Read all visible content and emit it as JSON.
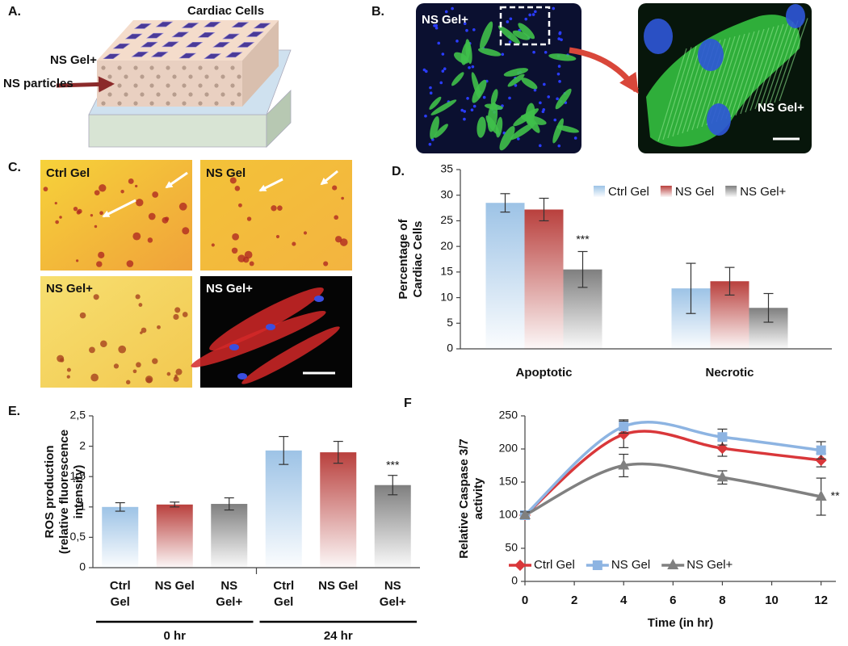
{
  "panel_a": {
    "label": "A.",
    "top_label": "Cardiac Cells",
    "gel_label": "NS Gel+",
    "particles_label": "NS particles"
  },
  "panel_b": {
    "label": "B.",
    "left_label": "NS Gel+",
    "right_label": "NS Gel+"
  },
  "panel_c": {
    "label": "C.",
    "image_labels": [
      "Ctrl Gel",
      "NS Gel",
      "NS Gel+",
      "NS Gel+"
    ]
  },
  "chart_data": [
    {
      "type": "bar",
      "label": "D.",
      "ylabel": [
        "Percentage  of",
        "Cardiac Cells"
      ],
      "categories": [
        "Apoptotic",
        "Necrotic"
      ],
      "series": [
        {
          "name": "Ctrl Gel",
          "color": "#9dc3e6",
          "values": [
            28.5,
            11.8
          ],
          "errors": [
            1.8,
            4.9
          ]
        },
        {
          "name": "NS Gel",
          "color": "#b9403d",
          "values": [
            27.2,
            13.2
          ],
          "errors": [
            2.2,
            2.7
          ]
        },
        {
          "name": "NS Gel+",
          "color": "#7f7f7f",
          "values": [
            15.5,
            8.0
          ],
          "errors": [
            3.5,
            2.8
          ],
          "significance": [
            "***",
            null
          ]
        }
      ],
      "ylim": [
        0,
        35
      ],
      "yticks": [
        0,
        5,
        10,
        15,
        20,
        25,
        30,
        35
      ],
      "legend": "top-right"
    },
    {
      "type": "bar",
      "label": "E.",
      "ylabel": [
        "ROS production",
        "(relative fluorescence",
        "intensity)"
      ],
      "categories": [
        [
          "Ctrl",
          "Gel"
        ],
        [
          "NS Gel"
        ],
        [
          "NS",
          "Gel+"
        ],
        [
          "Ctrl",
          "Gel"
        ],
        [
          "NS Gel"
        ],
        [
          "NS",
          "Gel+"
        ]
      ],
      "groups": [
        "0 hr",
        "24 hr"
      ],
      "values": [
        1.0,
        1.04,
        1.05,
        1.93,
        1.9,
        1.36
      ],
      "errors": [
        0.07,
        0.04,
        0.1,
        0.23,
        0.18,
        0.16
      ],
      "colors": [
        "#9dc3e6",
        "#b9403d",
        "#7f7f7f",
        "#9dc3e6",
        "#b9403d",
        "#7f7f7f"
      ],
      "significance": [
        null,
        null,
        null,
        null,
        null,
        "***"
      ],
      "ylim": [
        0,
        2.5
      ],
      "yticks": [
        0,
        {
          "value": 0.5,
          "label": "0,5"
        },
        1,
        {
          "value": 1.5,
          "label": "1,5"
        },
        2,
        {
          "value": 2.5,
          "label": "2,5"
        }
      ]
    },
    {
      "type": "line",
      "label": "F",
      "ylabel": [
        "Relative Caspase 3/7",
        "activity"
      ],
      "xlabel": "Time (in hr)",
      "x": [
        0,
        4,
        8,
        12
      ],
      "series": [
        {
          "name": "Ctrl Gel",
          "color": "#d9373a",
          "marker": "diamond",
          "values": [
            100,
            222,
            201,
            183
          ],
          "errors": [
            5,
            20,
            12,
            10
          ]
        },
        {
          "name": "NS Gel",
          "color": "#8db4e2",
          "marker": "square",
          "values": [
            100,
            234,
            218,
            198
          ],
          "errors": [
            5,
            10,
            12,
            13
          ]
        },
        {
          "name": "NS Gel+",
          "color": "#808080",
          "marker": "triangle",
          "values": [
            100,
            175,
            157,
            128
          ],
          "errors": [
            5,
            17,
            10,
            28
          ],
          "significance": [
            null,
            null,
            null,
            "**"
          ]
        }
      ],
      "xlim": [
        0,
        12.6
      ],
      "xticks": [
        0,
        2,
        4,
        6,
        8,
        10,
        12
      ],
      "ylim": [
        0,
        250
      ],
      "yticks": [
        0,
        50,
        100,
        150,
        200,
        250
      ],
      "legend": "bottom"
    }
  ]
}
